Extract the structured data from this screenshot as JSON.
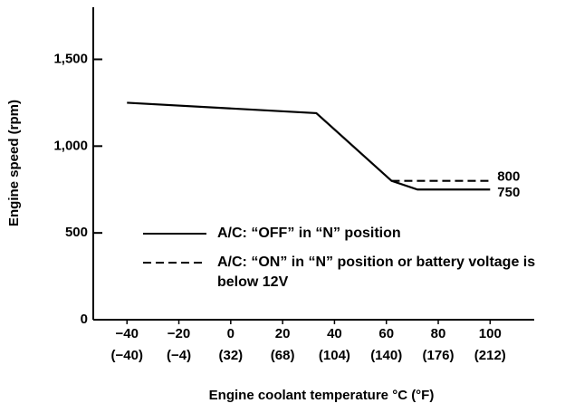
{
  "chart_data": {
    "type": "line",
    "ylabel": "Engine speed (rpm)",
    "xlabel": "Engine coolant temperature °C (°F)",
    "xlim": [
      -53,
      117
    ],
    "xticks": [
      {
        "value": -40,
        "label": "−40"
      },
      {
        "value": -20,
        "label": "−20"
      },
      0,
      20,
      40,
      60,
      80,
      100
    ],
    "x2lim": [
      -63.4,
      242.6
    ],
    "x2ticks": [
      {
        "value": -40,
        "label": "(−40)"
      },
      {
        "value": -4,
        "label": "(−4)"
      },
      {
        "value": 32,
        "label": "(32)"
      },
      {
        "value": 68,
        "label": "(68)"
      },
      {
        "value": 104,
        "label": "(104)"
      },
      {
        "value": 140,
        "label": "(140)"
      },
      {
        "value": 176,
        "label": "(176)"
      },
      {
        "value": 212,
        "label": "(212)"
      }
    ],
    "ylim": [
      0,
      1800
    ],
    "yticks": [
      0,
      500,
      {
        "value": 1000,
        "label": "1,000"
      },
      {
        "value": 1500,
        "label": "1,500"
      }
    ],
    "series": [
      {
        "name": "A/C: “OFF” in “N” position",
        "color": "#000000",
        "dash": false,
        "x": [
          -40,
          33,
          62,
          72,
          100
        ],
        "values": [
          1250,
          1190,
          800,
          750,
          750
        ],
        "end_label": "750"
      },
      {
        "name": "A/C: “ON” in “N” position or battery voltage is below 12V",
        "color": "#000000",
        "dash": true,
        "x": [
          62,
          100
        ],
        "values": [
          800,
          800
        ],
        "end_label": "800"
      }
    ]
  }
}
